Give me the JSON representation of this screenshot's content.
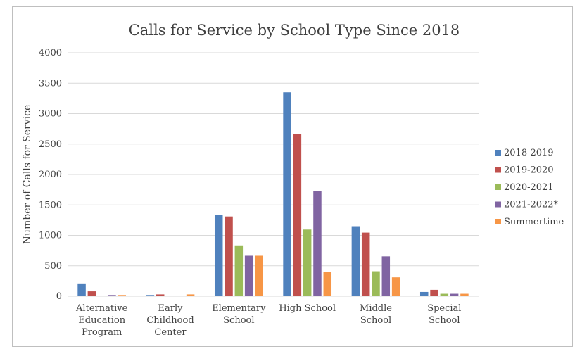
{
  "chart_data": {
    "type": "bar",
    "title": "Calls for Service by School Type Since 2018",
    "xlabel": "",
    "ylabel": "Number of Calls for Service",
    "ylim": [
      0,
      4000
    ],
    "yticks": [
      0,
      500,
      1000,
      1500,
      2000,
      2500,
      3000,
      3500,
      4000
    ],
    "grid": "horizontal",
    "legend_position": "right",
    "categories": [
      [
        "Alternative",
        "Education",
        "Program"
      ],
      [
        "Early",
        "Childhood",
        "Center"
      ],
      [
        "Elementary",
        "School"
      ],
      [
        "High School"
      ],
      [
        "Middle",
        "School"
      ],
      [
        "Special",
        "School"
      ]
    ],
    "series": [
      {
        "name": "2018-2019",
        "color": "#4f81bd",
        "values": [
          210,
          20,
          1330,
          3350,
          1150,
          70
        ]
      },
      {
        "name": "2019-2020",
        "color": "#c0504d",
        "values": [
          80,
          30,
          1310,
          2670,
          1045,
          105
        ]
      },
      {
        "name": "2020-2021",
        "color": "#9bbb59",
        "values": [
          5,
          5,
          835,
          1095,
          410,
          40
        ]
      },
      {
        "name": "2021-2022*",
        "color": "#8064a2",
        "values": [
          20,
          5,
          665,
          1730,
          655,
          40
        ]
      },
      {
        "name": "Summertime",
        "color": "#f79646",
        "values": [
          20,
          30,
          665,
          395,
          310,
          40
        ]
      }
    ]
  }
}
